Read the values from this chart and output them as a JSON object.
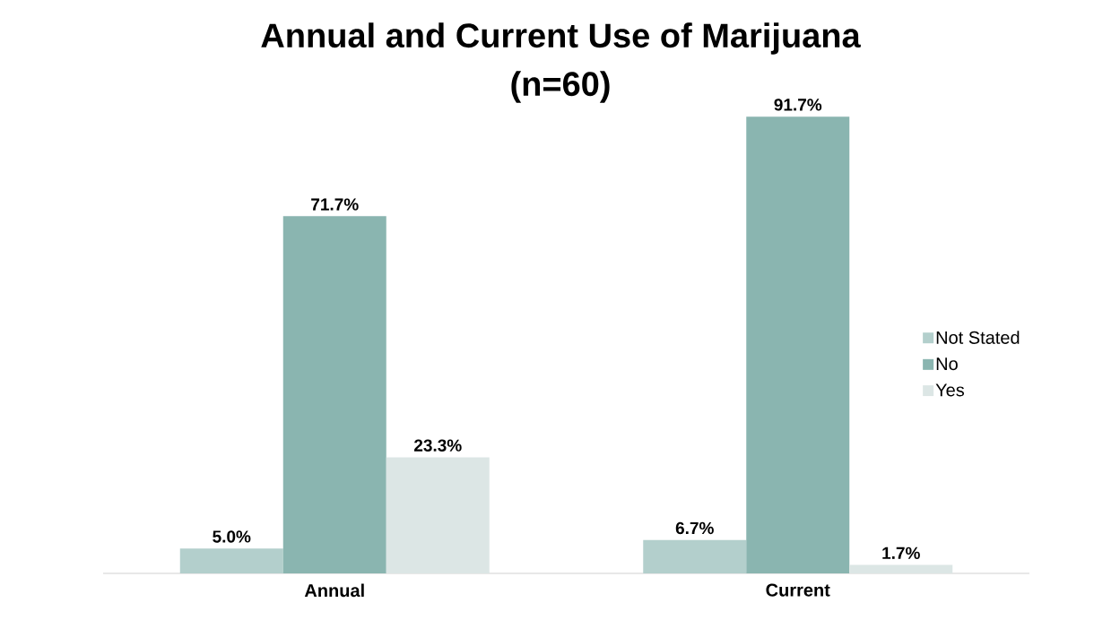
{
  "chart_data": {
    "type": "bar",
    "title": "Annual and Current Use of Marijuana",
    "subtitle": "(n=60)",
    "categories": [
      "Annual",
      "Current"
    ],
    "series": [
      {
        "name": "Not Stated",
        "color": "#b3cfcc",
        "values": [
          5.0,
          6.7
        ],
        "value_labels": [
          "5.0%",
          "6.7%"
        ]
      },
      {
        "name": "No",
        "color": "#8ab5b0",
        "values": [
          71.7,
          91.7
        ],
        "value_labels": [
          "71.7%",
          "91.7%"
        ]
      },
      {
        "name": "Yes",
        "color": "#dce6e5",
        "values": [
          23.3,
          1.7
        ],
        "value_labels": [
          "23.3%",
          "1.7%"
        ]
      }
    ],
    "legend": "right"
  }
}
